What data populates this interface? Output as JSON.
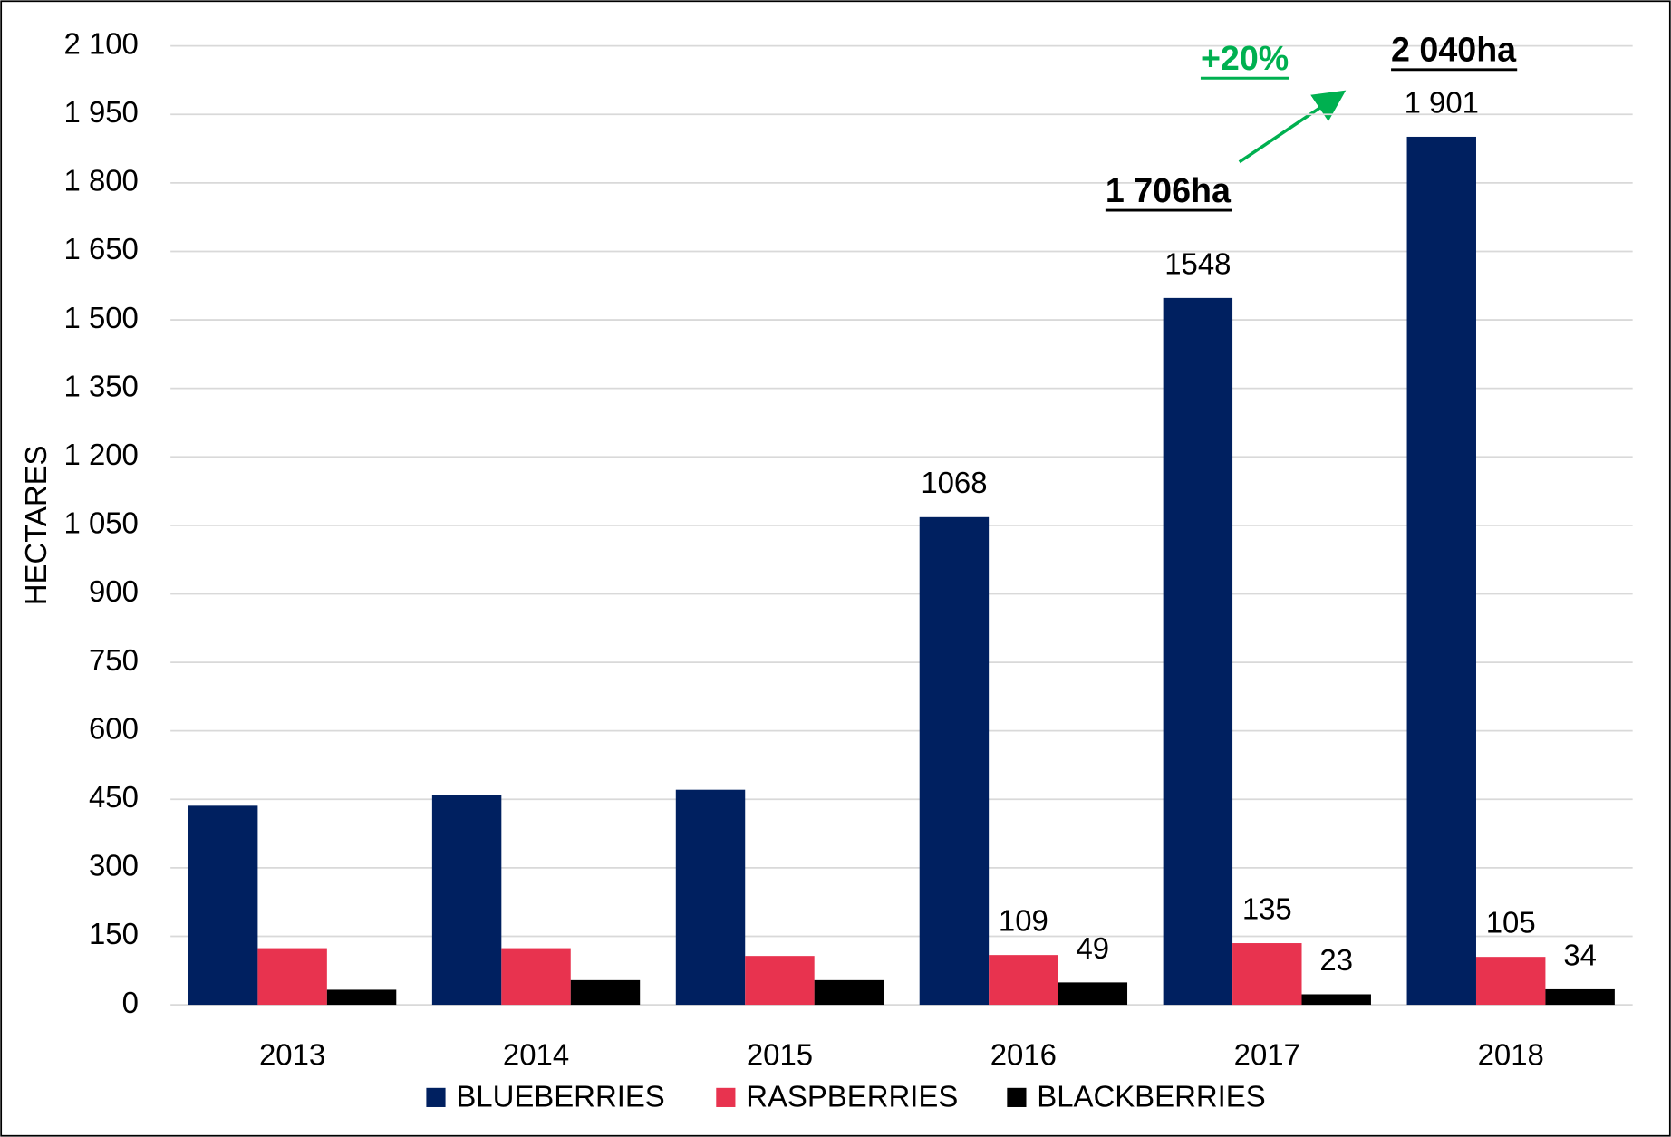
{
  "chart_data": {
    "type": "bar",
    "y_label": "HECTARES",
    "categories": [
      "2013",
      "2014",
      "2015",
      "2016",
      "2017",
      "2018"
    ],
    "series": [
      {
        "name": "BLUEBERRIES",
        "color": "#002060",
        "values": [
          436,
          460,
          471,
          1068,
          1548,
          1901
        ],
        "value_labels": [
          null,
          null,
          null,
          "1068",
          "1548",
          "1 901"
        ]
      },
      {
        "name": "RASPBERRIES",
        "color": "#e8334f",
        "values": [
          124,
          124,
          107,
          109,
          135,
          105
        ],
        "value_labels": [
          null,
          null,
          null,
          "109",
          "135",
          "105"
        ]
      },
      {
        "name": "BLACKBERRIES",
        "color": "#000000",
        "values": [
          33,
          54,
          54,
          49,
          23,
          34
        ],
        "value_labels": [
          null,
          null,
          null,
          "49",
          "23",
          "34"
        ]
      }
    ],
    "ylim": [
      0,
      2100
    ],
    "yticks": [
      0,
      150,
      300,
      450,
      600,
      750,
      900,
      {
        "value": 1050,
        "label": "1 050"
      },
      {
        "value": 1200,
        "label": "1 200"
      },
      {
        "value": 1350,
        "label": "1 350"
      },
      {
        "value": 1500,
        "label": "1 500"
      },
      {
        "value": 1650,
        "label": "1 650"
      },
      {
        "value": 1800,
        "label": "1 800"
      },
      {
        "value": 1950,
        "label": "1 950"
      },
      {
        "value": 2100,
        "label": "2 100"
      }
    ],
    "grid": true,
    "legend": "bottom",
    "annotations": [
      {
        "text": "+20%",
        "color": "#00b050"
      },
      {
        "text": "2 040ha",
        "color": "#000000"
      },
      {
        "text": "1 706ha",
        "color": "#000000"
      }
    ]
  }
}
